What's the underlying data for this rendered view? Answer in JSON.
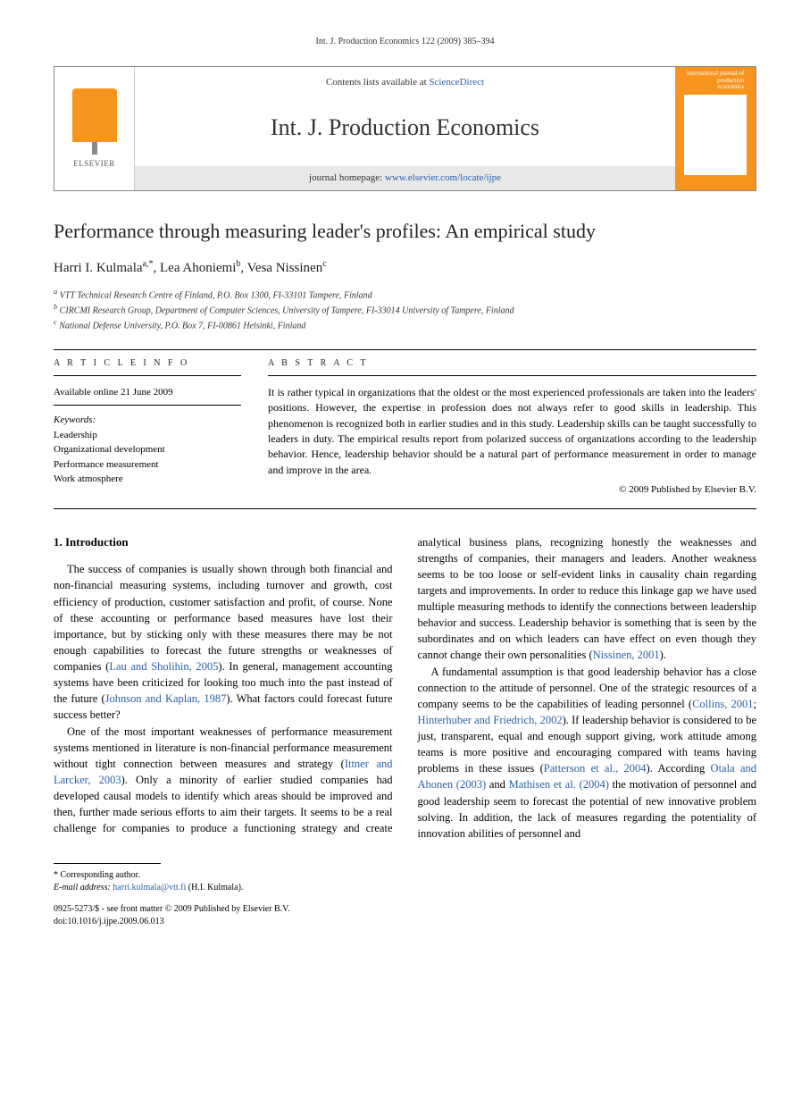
{
  "running_head": "Int. J. Production Economics 122 (2009) 385–394",
  "header": {
    "publisher_logo_text": "ELSEVIER",
    "contents_prefix": "Contents lists available at ",
    "contents_link": "ScienceDirect",
    "journal_name": "Int. J. Production Economics",
    "homepage_prefix": "journal homepage: ",
    "homepage_url": "www.elsevier.com/locate/ijpe",
    "cover_label_line1": "international journal of",
    "cover_label_line2": "production",
    "cover_label_line3": "economics"
  },
  "title": "Performance through measuring leader's profiles: An empirical study",
  "authors_line": "Harri I. Kulmala",
  "author1_sup": "a,*",
  "author2": ", Lea Ahoniemi",
  "author2_sup": "b",
  "author3": ", Vesa Nissinen",
  "author3_sup": "c",
  "affiliations": {
    "a": "VTT Technical Research Centre of Finland, P.O. Box 1300, FI-33101 Tampere, Finland",
    "b": "CIRCMI Research Group, Department of Computer Sciences, University of Tampere, FI-33014 University of Tampere, Finland",
    "c": "National Defense University, P.O. Box 7, FI-00861 Helsinki, Finland"
  },
  "info": {
    "label": "A R T I C L E   I N F O",
    "online": "Available online 21 June 2009",
    "kw_label": "Keywords:",
    "keywords": [
      "Leadership",
      "Organizational development",
      "Performance measurement",
      "Work atmosphere"
    ]
  },
  "abstract": {
    "label": "A B S T R A C T",
    "text": "It is rather typical in organizations that the oldest or the most experienced professionals are taken into the leaders' positions. However, the expertise in profession does not always refer to good skills in leadership. This phenomenon is recognized both in earlier studies and in this study. Leadership skills can be taught successfully to leaders in duty. The empirical results report from polarized success of organizations according to the leadership behavior. Hence, leadership behavior should be a natural part of performance measurement in order to manage and improve in the area.",
    "copyright": "© 2009 Published by Elsevier B.V."
  },
  "section1": {
    "heading": "1. Introduction",
    "p1": "The success of companies is usually shown through both financial and non-financial measuring systems, including turnover and growth, cost efficiency of production, customer satisfaction and profit, of course. None of these accounting or performance based measures have lost their importance, but by sticking only with these measures there may be not enough capabilities to forecast the future strengths or weaknesses of companies (",
    "p1_ref1": "Lau and Sholihin, 2005",
    "p1_cont1": "). In general, management accounting systems have been criticized for looking too much into the past instead of the future (",
    "p1_ref2": "Johnson and Kaplan, 1987",
    "p1_cont2": "). What factors could forecast future success better?",
    "p2": "One of the most important weaknesses of performance measurement systems mentioned in literature is non-financial performance measurement without tight connection between measures and strategy (",
    "p2_ref1": "Ittner and Larcker, 2003",
    "p2_cont1": "). Only a minority of earlier studied companies had developed causal models to identify which areas should be improved and then, further made serious efforts to aim their targets. It seems to be a real challenge for companies to produce a functioning strategy and create analytical business plans, recognizing honestly the weaknesses and strengths of companies, their managers and leaders. Another weakness seems to be too loose or self-evident links in causality chain regarding targets and improvements. In order to reduce this linkage gap we have used multiple measuring methods to identify the connections between leadership behavior and success. Leadership behavior is something that is seen by the subordinates and on which leaders can have effect on even though they cannot change their own personalities (",
    "p2_ref2": "Nissinen, 2001",
    "p2_cont2": ").",
    "p3": "A fundamental assumption is that good leadership behavior has a close connection to the attitude of personnel. One of the strategic resources of a company seems to be the capabilities of leading personnel (",
    "p3_ref1": "Collins, 2001",
    "p3_mid1": "; ",
    "p3_ref2": "Hinterhuber and Friedrich, 2002",
    "p3_cont1": "). If leadership behavior is considered to be just, transparent, equal and enough support giving, work attitude among teams is more positive and encouraging compared with teams having problems in these issues (",
    "p3_ref3": "Patterson et al., 2004",
    "p3_cont2": "). According ",
    "p3_ref4": "Otala and Ahonen (2003)",
    "p3_mid2": " and ",
    "p3_ref5": "Mathisen et al. (2004)",
    "p3_cont3": " the motivation of personnel and good leadership seem to forecast the potential of new innovative problem solving. In addition, the lack of measures regarding the potentiality of innovation abilities of personnel and"
  },
  "footnote": {
    "corr": "* Corresponding author.",
    "email_label": "E-mail address: ",
    "email": "harri.kulmala@vtt.fi",
    "email_who": " (H.I. Kulmala)."
  },
  "bottom": {
    "issn": "0925-5273/$ - see front matter © 2009 Published by Elsevier B.V.",
    "doi": "doi:10.1016/j.ijpe.2009.06.013"
  },
  "colors": {
    "link": "#2960a8",
    "orange": "#f7941e",
    "text": "#000000"
  }
}
